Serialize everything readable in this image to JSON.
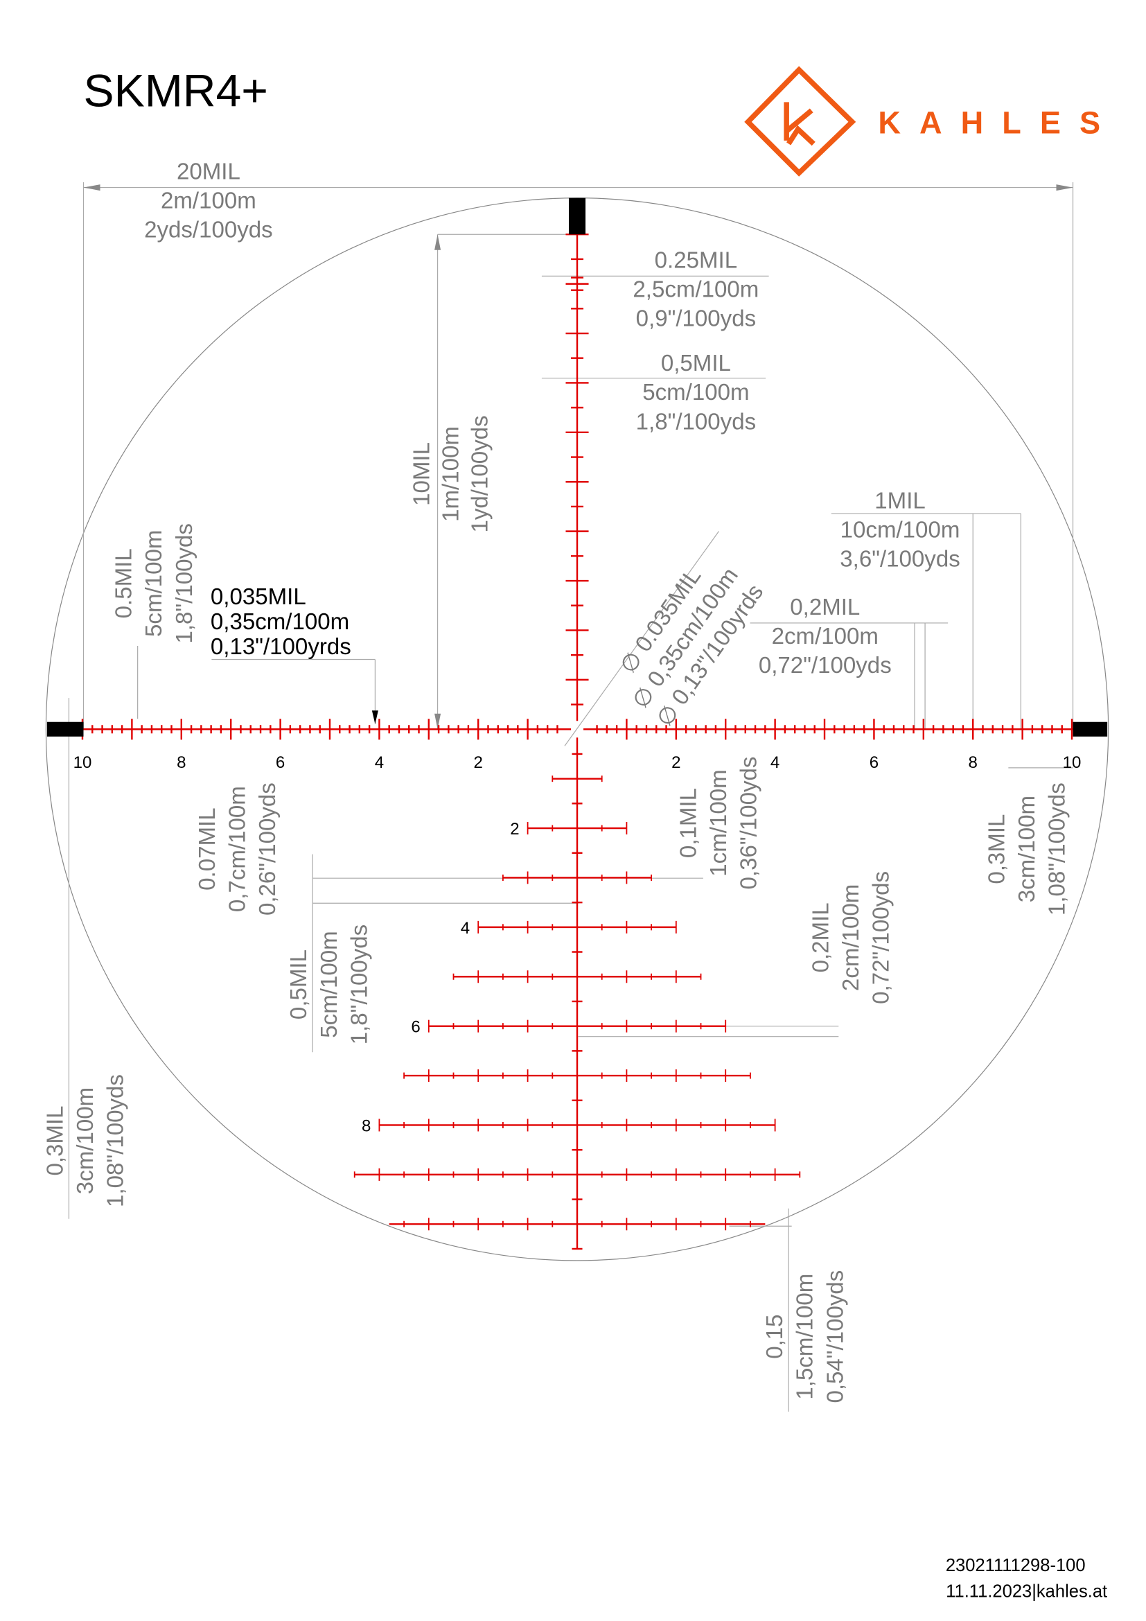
{
  "title": "SKMR4+",
  "brand": {
    "name": "KAHLES",
    "color": "#f05a14",
    "logo_letter": "K"
  },
  "footer": {
    "code": "23021111298-100",
    "date_site": "11.11.2023|kahles.at"
  },
  "colors": {
    "reticle": "#e00000",
    "annotation": "#7a7a7a",
    "post": "#000000"
  },
  "reticle": {
    "horizontal_range_mil": 10,
    "horizontal_minor_step_mil": 0.2,
    "vertical_range_mil": 10,
    "scale_labels": [
      "10",
      "8",
      "6",
      "4",
      "2",
      "2",
      "4",
      "6",
      "8",
      "10"
    ],
    "holdover_labels": [
      "2",
      "4",
      "6",
      "8"
    ],
    "holdover_rows": [
      {
        "mil": 1,
        "half_width_mil": 0.5
      },
      {
        "mil": 2,
        "half_width_mil": 1
      },
      {
        "mil": 3,
        "half_width_mil": 1.5
      },
      {
        "mil": 4,
        "half_width_mil": 2
      },
      {
        "mil": 5,
        "half_width_mil": 2.5
      },
      {
        "mil": 6,
        "half_width_mil": 3
      },
      {
        "mil": 7,
        "half_width_mil": 3.5
      },
      {
        "mil": 8,
        "half_width_mil": 4
      },
      {
        "mil": 9,
        "half_width_mil": 4.5
      },
      {
        "mil": 10,
        "half_width_mil": 3.8
      }
    ]
  },
  "annotations": {
    "total_width": [
      "20MIL",
      "2m/100m",
      "2yds/100yds"
    ],
    "upper_small": [
      "0.25MIL",
      "2,5cm/100m",
      "0,9\"/100yds"
    ],
    "upper_half": [
      "0,5MIL",
      "5cm/100m",
      "1,8\"/100yds"
    ],
    "upper_height": [
      "10MIL",
      "1m/100m",
      "1yd/100yds"
    ],
    "right_mil": [
      "1MIL",
      "10cm/100m",
      "3,6\"/100yds"
    ],
    "right_fifth": [
      "0,2MIL",
      "2cm/100m",
      "0,72\"/100yds"
    ],
    "line_thickness": [
      "0,035MIL",
      "0,35cm/100m",
      "0,13\"/100yrds"
    ],
    "left_half": [
      "0.5MIL",
      "5cm/100m",
      "1,8\"/100yds"
    ],
    "center_dot": [
      "∅ 0.035MIL",
      "∅ 0,35cm/100m",
      "∅ 0,13\"/100yrds"
    ],
    "tick_length": [
      "0.07MIL",
      "0,7cm/100m",
      "0,26\"/100yds"
    ],
    "holdover_spacing": [
      "0,5MIL",
      "5cm/100m",
      "1,8\"/100yds"
    ],
    "holdover_tick": [
      "0,1MIL",
      "1cm/100m",
      "0,36\"/100yds"
    ],
    "holdover_tick2": [
      "0,2MIL",
      "2cm/100m",
      "0,72\"/100yds"
    ],
    "post_right": [
      "0,3MIL",
      "3cm/100m",
      "1,08\"/100yds"
    ],
    "post_left": [
      "0,3MIL",
      "3cm/100m",
      "1,08\"/100yds"
    ],
    "bottom_bar": [
      "0,15",
      "1,5cm/100m",
      "0,54\"/100yds"
    ]
  }
}
